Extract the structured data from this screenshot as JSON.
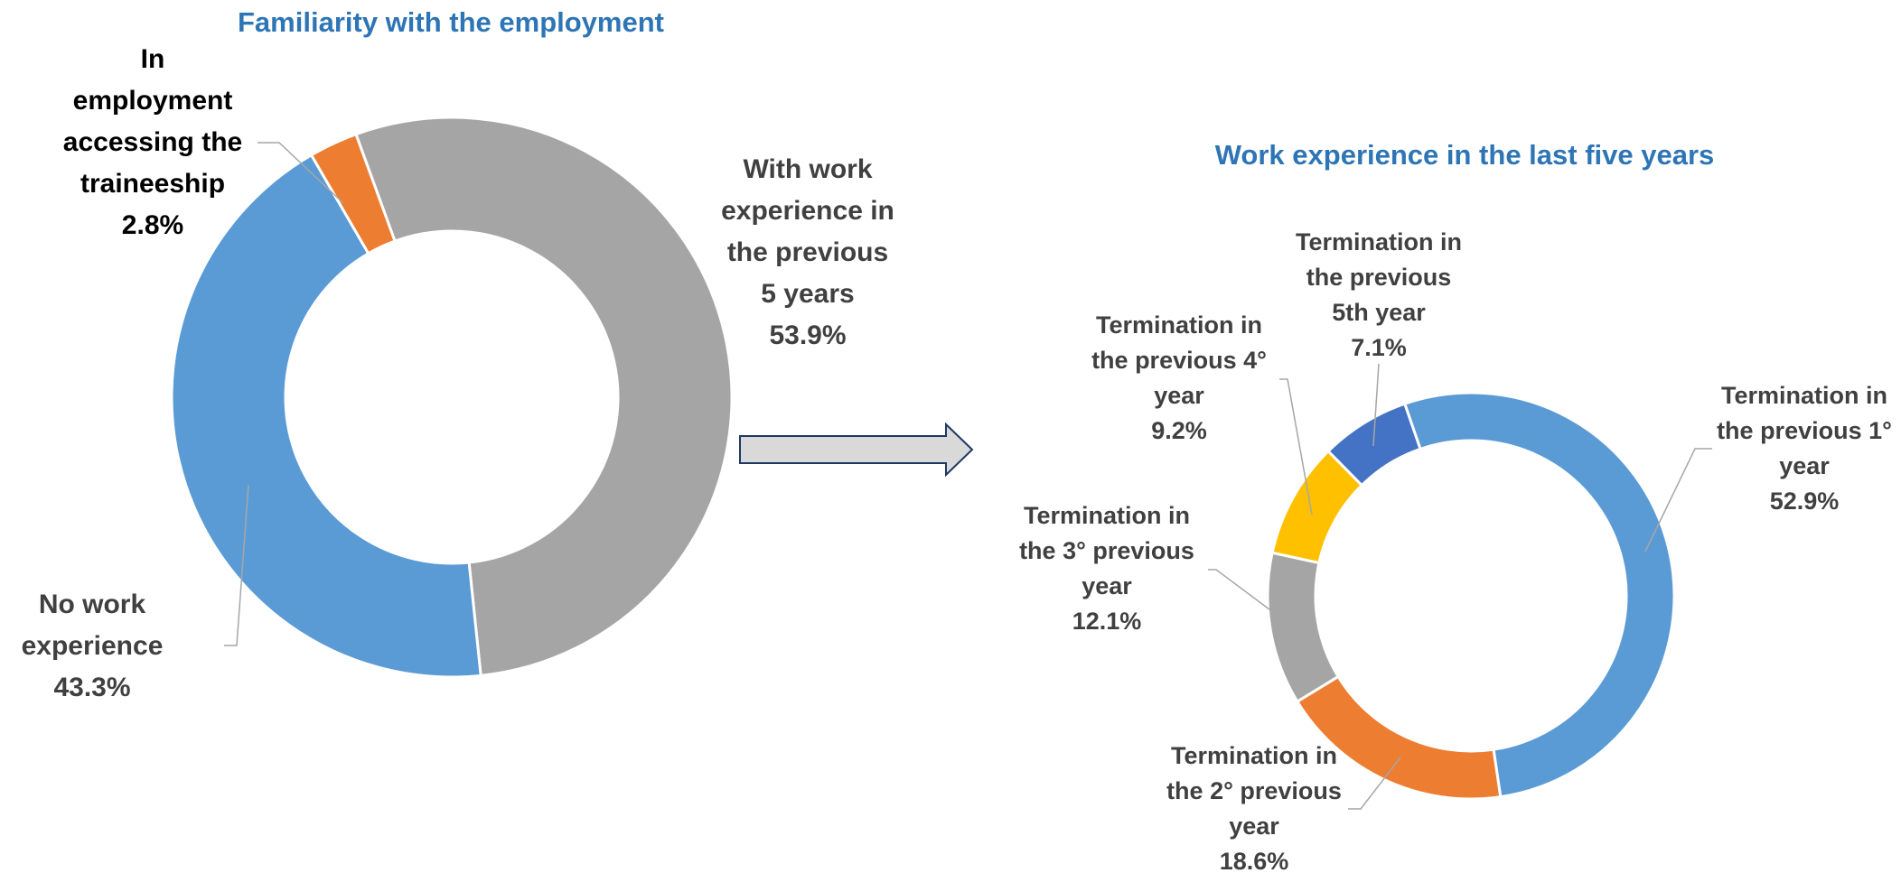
{
  "chart_data": [
    {
      "type": "donut",
      "title": "Familiarity with the employment",
      "categories": [
        "With work experience in the previous 5 years",
        "No work experience",
        "In employment accessing the traineeship"
      ],
      "values": [
        53.9,
        43.3,
        2.8
      ],
      "value_labels": [
        "53.9%",
        "43.3%",
        "2.8%"
      ],
      "colors": [
        "#a5a5a5",
        "#5b9bd5",
        "#ed7d31"
      ]
    },
    {
      "type": "donut",
      "title": "Work experience in the last five years",
      "categories": [
        "Termination in the previous 1° year",
        "Termination in the 2° previous year",
        "Termination in the 3° previous year",
        "Termination in the previous 4° year",
        "Termination in the previous 5th year"
      ],
      "values": [
        52.9,
        18.6,
        12.1,
        9.2,
        7.1
      ],
      "value_labels": [
        "52.9%",
        "18.6%",
        "12.1%",
        "9.2%",
        "7.1%"
      ],
      "colors": [
        "#5b9bd5",
        "#ed7d31",
        "#a5a5a5",
        "#ffc000",
        "#4472c4"
      ]
    }
  ]
}
